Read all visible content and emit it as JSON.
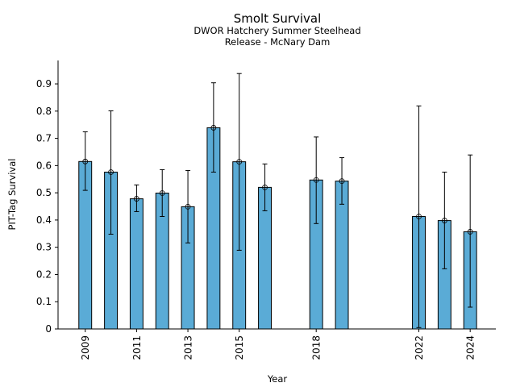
{
  "chart_data": {
    "type": "bar",
    "title": "Smolt Survival",
    "subtitle_lines": [
      "DWOR Hatchery Summer Steelhead",
      "Release - McNary Dam"
    ],
    "xlabel": "Year",
    "ylabel": "PIT-Tag Survival",
    "xlim": [
      2007.94,
      2025.0
    ],
    "ylim": [
      0,
      0.986
    ],
    "grid": false,
    "legend": null,
    "bar_color": "#5aabd6",
    "bar_edge_color": "#000000",
    "x_ticks": [
      2009,
      2011,
      2013,
      2015,
      2018,
      2022,
      2024
    ],
    "y_ticks": [
      0,
      0.1,
      0.2,
      0.3,
      0.4,
      0.5,
      0.6,
      0.7,
      0.8,
      0.9
    ],
    "y_tick_labels": [
      "0",
      "0.1",
      "0.2",
      "0.3",
      "0.4",
      "0.5",
      "0.6",
      "0.7",
      "0.8",
      "0.9"
    ],
    "series": [
      {
        "name": "PIT-Tag Survival",
        "x": [
          2009,
          2010,
          2011,
          2012,
          2013,
          2014,
          2015,
          2016,
          2018,
          2019,
          2022,
          2023,
          2024
        ],
        "values": [
          0.615,
          0.576,
          0.478,
          0.499,
          0.449,
          0.739,
          0.614,
          0.52,
          0.547,
          0.543,
          0.413,
          0.398,
          0.357
        ],
        "err_lower": [
          0.509,
          0.348,
          0.431,
          0.413,
          0.316,
          0.576,
          0.289,
          0.434,
          0.387,
          0.458,
          0.005,
          0.221,
          0.08
        ],
        "err_upper": [
          0.724,
          0.801,
          0.529,
          0.585,
          0.582,
          0.904,
          0.938,
          0.606,
          0.705,
          0.629,
          0.819,
          0.576,
          0.639
        ]
      }
    ]
  }
}
